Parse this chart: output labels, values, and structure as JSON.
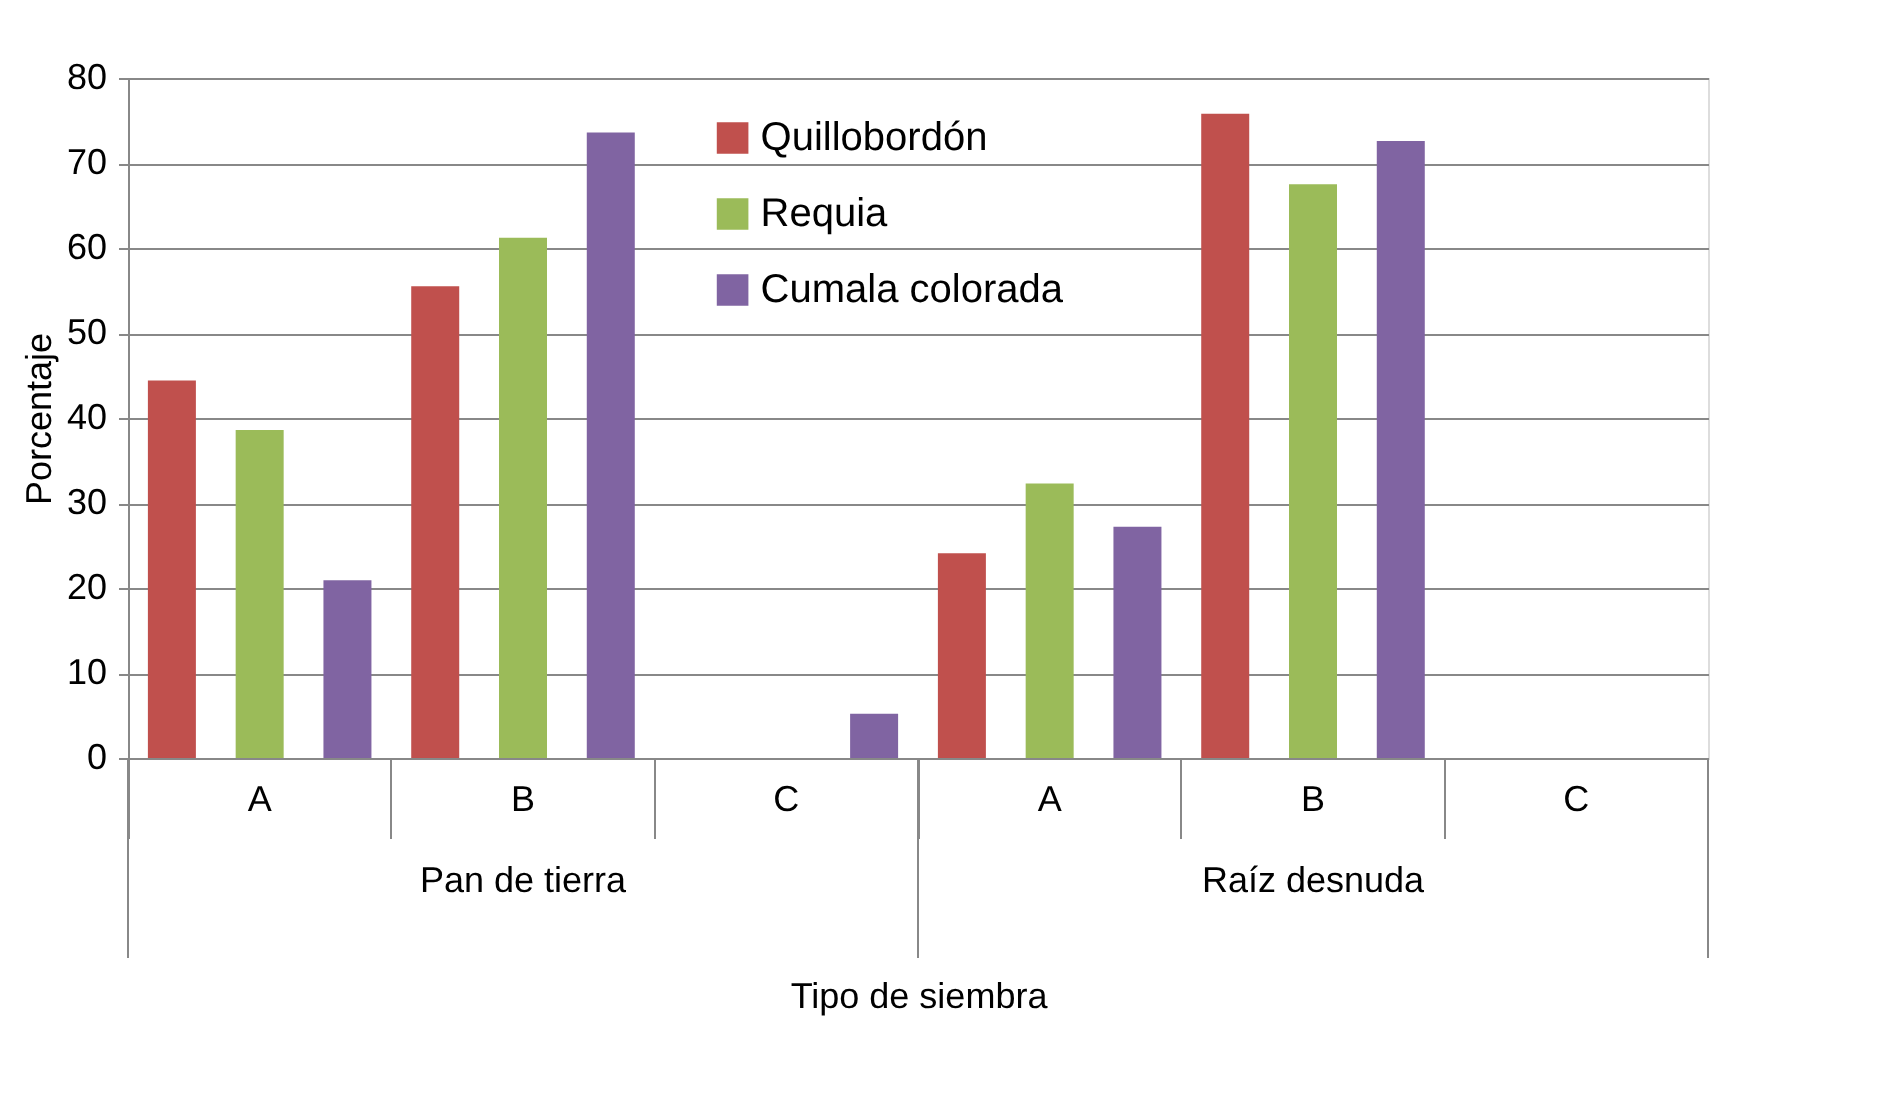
{
  "chart_data": {
    "type": "bar",
    "xlabel": "Tipo de siembra",
    "ylabel": "Porcentaje",
    "categories": [
      "A",
      "B",
      "C",
      "A",
      "B",
      "C"
    ],
    "series": [
      {
        "name": "Quillobordón",
        "color": "#c0504d",
        "values": [
          44.4,
          55.5,
          0,
          24.1,
          75.8,
          0
        ]
      },
      {
        "name": "Requia",
        "color": "#9bbb59",
        "values": [
          38.6,
          61.2,
          0,
          32.3,
          67.5,
          0
        ]
      },
      {
        "name": "Cumala colorada",
        "color": "#8064a2",
        "values": [
          20.9,
          73.6,
          5.2,
          27.2,
          72.6,
          0
        ]
      }
    ],
    "ylim": [
      0,
      80
    ],
    "yticks": [
      0,
      10,
      20,
      30,
      40,
      50,
      60,
      70,
      80
    ],
    "grid": "y",
    "legend": "top",
    "annotations": [
      "Pan de tierra",
      "Raíz desnuda"
    ]
  }
}
